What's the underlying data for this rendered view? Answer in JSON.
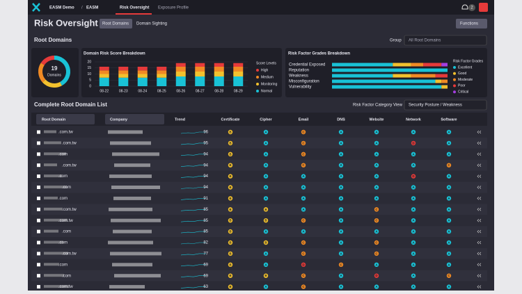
{
  "nav": {
    "org": "EASM Demo",
    "separator": "/",
    "product": "EASM",
    "tabs": [
      "Risk Oversight",
      "Exposure Profile"
    ],
    "notifications": "2"
  },
  "header": {
    "title": "Risk Oversight",
    "views": [
      "Root Domains",
      "Domain Sighting"
    ],
    "functions": "Functions"
  },
  "root_domains": {
    "title": "Root Domains",
    "group_label": "Group",
    "group_value": "All Root Domains",
    "domain_count": "19",
    "domain_count_label": "Domains"
  },
  "chart_data": [
    {
      "type": "bar",
      "stacked": true,
      "title": "Domain Risk Score Breakdown",
      "legend_title": "Score Levels",
      "categories": [
        "08-22",
        "08-23",
        "08-24",
        "08-25",
        "08-26",
        "08-27",
        "08-28",
        "08-29"
      ],
      "ylim": [
        0,
        20
      ],
      "yticks": [
        0,
        5,
        10,
        15,
        20
      ],
      "series": [
        {
          "name": "Normal",
          "color": "#19c2d6",
          "values": [
            7,
            7,
            7,
            7,
            8,
            8,
            8,
            8
          ]
        },
        {
          "name": "Monitoring",
          "color": "#f2c12e",
          "values": [
            3,
            3,
            3,
            3,
            4,
            4,
            4,
            4
          ]
        },
        {
          "name": "Medium",
          "color": "#f08a24",
          "values": [
            3,
            3,
            3,
            3,
            4,
            4,
            4,
            4
          ]
        },
        {
          "name": "High",
          "color": "#e63a3a",
          "values": [
            3,
            3,
            3,
            3,
            3,
            3,
            3,
            3
          ]
        }
      ]
    },
    {
      "type": "hbar",
      "stacked": true,
      "title": "Risk Factor Grades Breakdown",
      "legend_title": "Risk Factor Grades",
      "categories": [
        "Credential Exposed",
        "Reputation",
        "Weakness",
        "Misconfiguration",
        "Vulnerability"
      ],
      "xlim": [
        0,
        19
      ],
      "series": [
        {
          "name": "Excellent",
          "color": "#19c2d6",
          "values": [
            10,
            19,
            10,
            17,
            18
          ]
        },
        {
          "name": "Good",
          "color": "#f2c12e",
          "values": [
            3,
            0,
            3,
            1,
            1
          ]
        },
        {
          "name": "Moderate",
          "color": "#f08a24",
          "values": [
            2,
            0,
            4,
            1,
            0
          ]
        },
        {
          "name": "Poor",
          "color": "#e63a3a",
          "values": [
            3,
            0,
            2,
            0,
            0
          ]
        },
        {
          "name": "Critical",
          "color": "#a43ee0",
          "values": [
            1,
            0,
            0,
            0,
            0
          ]
        }
      ]
    }
  ],
  "table": {
    "title": "Complete Root Domain List",
    "view_label": "Risk Factor Category View",
    "view_value": "Security Posture / Weakness",
    "grade_colors": {
      "A": "#19c2d6",
      "B": "#f2c12e",
      "C": "#f08a24",
      "D": "#e63a3a"
    },
    "columns": [
      "Root Domain",
      "Company",
      "Trend",
      "Certificate",
      "Cipher",
      "Email",
      "DNS",
      "Website",
      "Network",
      "Software"
    ],
    "rows": [
      [
        ".com.tw",
        96,
        "B",
        "A",
        "C",
        "A",
        "A",
        "A",
        "A"
      ],
      [
        ".com.tw",
        95,
        "B",
        "A",
        "C",
        "A",
        "A",
        "D",
        "A"
      ],
      [
        ".com",
        94,
        "B",
        "A",
        "C",
        "A",
        "A",
        "A",
        "A"
      ],
      [
        ".com.tw",
        94,
        "B",
        "A",
        "C",
        "A",
        "A",
        "A",
        "C"
      ],
      [
        ".com",
        94,
        "B",
        "A",
        "A",
        "A",
        "A",
        "D",
        "A"
      ],
      [
        ".com",
        94,
        "B",
        "A",
        "A",
        "A",
        "A",
        "A",
        "A"
      ],
      [
        ".com",
        91,
        "B",
        "A",
        "A",
        "A",
        "A",
        "A",
        "A"
      ],
      [
        ".com.tw",
        85,
        "B",
        "B",
        "A",
        "A",
        "C",
        "A",
        "A"
      ],
      [
        ".com.tw",
        85,
        "B",
        "B",
        "C",
        "A",
        "C",
        "A",
        "A"
      ],
      [
        ".com",
        85,
        "B",
        "A",
        "A",
        "A",
        "A",
        "A",
        "A"
      ],
      [
        ".com",
        82,
        "B",
        "B",
        "C",
        "A",
        "C",
        "A",
        "A"
      ],
      [
        ".com.tw",
        77,
        "B",
        "A",
        "C",
        "A",
        "C",
        "A",
        "A"
      ],
      [
        ".com",
        69,
        "B",
        "A",
        "D",
        "C",
        "A",
        "A",
        "A"
      ],
      [
        ".com",
        69,
        "B",
        "B",
        "C",
        "A",
        "D",
        "A",
        "C"
      ],
      [
        ".com.tw",
        63,
        "B",
        "A",
        "C",
        "A",
        "A",
        "A",
        "A"
      ]
    ]
  }
}
